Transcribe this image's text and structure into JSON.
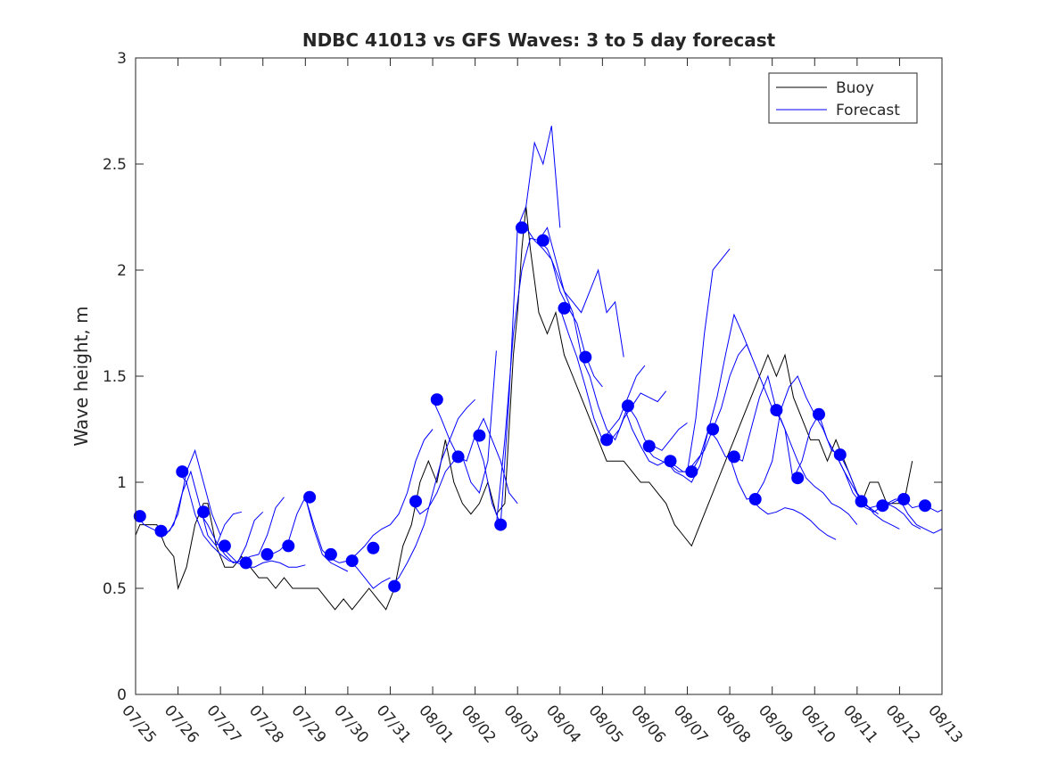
{
  "chart_data": {
    "type": "line",
    "title": "NDBC 41013 vs GFS Waves: 3 to 5 day forecast",
    "xlabel": "",
    "ylabel": "Wave height, m",
    "xlim": [
      0,
      19
    ],
    "ylim": [
      0,
      3
    ],
    "x_tick_values": [
      0,
      1,
      2,
      3,
      4,
      5,
      6,
      7,
      8,
      9,
      10,
      11,
      12,
      13,
      14,
      15,
      16,
      17,
      18,
      19
    ],
    "x_tick_labels": [
      "07/25",
      "07/26",
      "07/27",
      "07/28",
      "07/29",
      "07/30",
      "07/31",
      "08/01",
      "08/02",
      "08/03",
      "08/04",
      "08/05",
      "08/06",
      "08/07",
      "08/08",
      "08/09",
      "08/10",
      "08/11",
      "08/12",
      "08/13"
    ],
    "y_tick_values": [
      0,
      0.5,
      1,
      1.5,
      2,
      2.5,
      3
    ],
    "y_tick_labels": [
      "0",
      "0.5",
      "1",
      "1.5",
      "2",
      "2.5",
      "3"
    ],
    "grid": false,
    "legend_position": "top-right",
    "colors": {
      "buoy": "#000000",
      "forecast": "#0000ff",
      "axis": "#262626"
    },
    "series": [
      {
        "name": "Buoy",
        "kind": "line",
        "x": [
          0,
          0.1,
          0.2,
          0.3,
          0.5,
          0.7,
          0.9,
          1.0,
          1.2,
          1.4,
          1.6,
          1.7,
          1.9,
          2.1,
          2.3,
          2.5,
          2.7,
          2.9,
          3.1,
          3.3,
          3.5,
          3.7,
          3.9,
          4.1,
          4.3,
          4.5,
          4.7,
          4.9,
          5.1,
          5.3,
          5.5,
          5.7,
          5.9,
          6.1,
          6.3,
          6.5,
          6.7,
          6.9,
          7.1,
          7.3,
          7.5,
          7.7,
          7.9,
          8.1,
          8.3,
          8.5,
          8.7,
          8.9,
          9.0,
          9.1,
          9.2,
          9.3,
          9.5,
          9.7,
          9.9,
          10.1,
          10.3,
          10.5,
          10.7,
          10.9,
          11.1,
          11.3,
          11.5,
          11.7,
          11.9,
          12.1,
          12.3,
          12.5,
          12.7,
          12.9,
          13.1,
          13.3,
          13.5,
          13.7,
          13.9,
          14.1,
          14.3,
          14.5,
          14.7,
          14.9,
          15.1,
          15.3,
          15.5,
          15.7,
          15.9,
          16.1,
          16.3,
          16.5,
          16.7,
          16.9,
          17.1,
          17.3,
          17.5,
          17.7,
          17.9,
          18.1,
          18.3
        ],
        "y": [
          0.75,
          0.8,
          0.8,
          0.8,
          0.8,
          0.7,
          0.65,
          0.5,
          0.6,
          0.8,
          0.9,
          0.9,
          0.7,
          0.6,
          0.6,
          0.65,
          0.6,
          0.55,
          0.55,
          0.5,
          0.55,
          0.5,
          0.5,
          0.5,
          0.5,
          0.45,
          0.4,
          0.45,
          0.4,
          0.45,
          0.5,
          0.45,
          0.4,
          0.5,
          0.7,
          0.8,
          1.0,
          1.1,
          1.0,
          1.2,
          1.0,
          0.9,
          0.85,
          0.9,
          1.0,
          0.85,
          0.9,
          1.6,
          1.8,
          2.1,
          2.3,
          2.1,
          1.8,
          1.7,
          1.8,
          1.6,
          1.5,
          1.4,
          1.3,
          1.2,
          1.1,
          1.1,
          1.1,
          1.05,
          1.0,
          1.0,
          0.95,
          0.9,
          0.8,
          0.75,
          0.7,
          0.8,
          0.9,
          1.0,
          1.1,
          1.2,
          1.3,
          1.4,
          1.5,
          1.6,
          1.5,
          1.6,
          1.4,
          1.3,
          1.2,
          1.2,
          1.1,
          1.2,
          1.1,
          1.0,
          0.9,
          1.0,
          1.0,
          0.9,
          0.9,
          0.9,
          1.1
        ]
      },
      {
        "name": "Forecast",
        "kind": "line",
        "x": [
          0,
          0.2,
          0.4,
          0.6,
          0.8,
          1.0,
          1.2,
          1.4,
          1.6,
          1.8,
          2.0
        ],
        "y": [
          0.85,
          0.8,
          0.78,
          0.76,
          0.77,
          0.85,
          1.05,
          1.15,
          1.0,
          0.85,
          0.75
        ]
      },
      {
        "kind": "line",
        "x": [
          0.5,
          0.7,
          0.9,
          1.1,
          1.3,
          1.5,
          1.7,
          1.9,
          2.1,
          2.3,
          2.5
        ],
        "y": [
          0.77,
          0.75,
          0.8,
          0.95,
          1.05,
          0.9,
          0.75,
          0.7,
          0.8,
          0.85,
          0.86
        ]
      },
      {
        "kind": "line",
        "x": [
          1.0,
          1.2,
          1.4,
          1.6,
          1.8,
          2.0,
          2.2,
          2.4,
          2.6,
          2.8,
          3.0
        ],
        "y": [
          1.05,
          1.0,
          0.85,
          0.75,
          0.7,
          0.66,
          0.63,
          0.62,
          0.7,
          0.82,
          0.86
        ]
      },
      {
        "kind": "line",
        "x": [
          1.5,
          1.7,
          1.9,
          2.1,
          2.3,
          2.5,
          2.7,
          2.9,
          3.1,
          3.3,
          3.5
        ],
        "y": [
          0.86,
          0.8,
          0.72,
          0.66,
          0.62,
          0.63,
          0.65,
          0.66,
          0.75,
          0.88,
          0.93
        ]
      },
      {
        "kind": "line",
        "x": [
          2.0,
          2.2,
          2.4,
          2.6,
          2.8,
          3.0,
          3.2,
          3.4,
          3.6,
          3.8,
          4.0
        ],
        "y": [
          0.7,
          0.66,
          0.62,
          0.6,
          0.6,
          0.62,
          0.63,
          0.62,
          0.6,
          0.6,
          0.61
        ]
      },
      {
        "kind": "line",
        "x": [
          3.0,
          3.2,
          3.4,
          3.6,
          3.8,
          4.0,
          4.2,
          4.4,
          4.6,
          4.8,
          5.0
        ],
        "y": [
          0.66,
          0.66,
          0.68,
          0.72,
          0.85,
          0.93,
          0.78,
          0.66,
          0.62,
          0.6,
          0.58
        ]
      },
      {
        "kind": "line",
        "x": [
          4.0,
          4.2,
          4.4,
          4.6,
          4.8,
          5.0,
          5.2,
          5.4,
          5.6,
          5.8,
          6.0
        ],
        "y": [
          0.93,
          0.8,
          0.68,
          0.64,
          0.62,
          0.63,
          0.6,
          0.55,
          0.5,
          0.53,
          0.55
        ]
      },
      {
        "kind": "line",
        "x": [
          5.0,
          5.2,
          5.4,
          5.6,
          5.8,
          6.0,
          6.2,
          6.4,
          6.6,
          6.8,
          7.0
        ],
        "y": [
          0.63,
          0.66,
          0.7,
          0.75,
          0.78,
          0.8,
          0.85,
          0.95,
          1.1,
          1.2,
          1.25
        ]
      },
      {
        "kind": "line",
        "x": [
          6.0,
          6.2,
          6.4,
          6.6,
          6.8,
          7.0,
          7.2,
          7.4,
          7.6,
          7.8,
          8.0
        ],
        "y": [
          0.51,
          0.55,
          0.62,
          0.7,
          0.8,
          0.95,
          1.1,
          1.2,
          1.3,
          1.35,
          1.39
        ]
      },
      {
        "kind": "line",
        "x": [
          6.5,
          6.7,
          6.9,
          7.1,
          7.3,
          7.5,
          7.7,
          7.9,
          8.1,
          8.3,
          8.5
        ],
        "y": [
          0.91,
          0.85,
          0.88,
          0.95,
          1.05,
          1.1,
          1.12,
          1.0,
          0.95,
          1.1,
          1.62
        ]
      },
      {
        "kind": "line",
        "x": [
          7.0,
          7.2,
          7.4,
          7.6,
          7.8,
          8.0,
          8.2,
          8.4,
          8.6,
          8.8,
          9.0
        ],
        "y": [
          1.39,
          1.3,
          1.2,
          1.12,
          1.1,
          1.22,
          1.3,
          1.2,
          1.1,
          0.95,
          0.9
        ]
      },
      {
        "kind": "line",
        "x": [
          8.0,
          8.2,
          8.4,
          8.6,
          8.8,
          9.0,
          9.2,
          9.4,
          9.6,
          9.8,
          10.0
        ],
        "y": [
          1.22,
          1.1,
          0.9,
          0.8,
          1.4,
          2.2,
          2.3,
          2.6,
          2.5,
          2.68,
          2.2
        ]
      },
      {
        "kind": "line",
        "x": [
          8.5,
          8.7,
          8.9,
          9.1,
          9.3,
          9.5,
          9.7,
          9.9,
          10.1,
          10.3,
          10.5
        ],
        "y": [
          0.8,
          1.2,
          1.7,
          2.0,
          2.15,
          2.14,
          2.1,
          2.0,
          1.9,
          1.8,
          1.6
        ]
      },
      {
        "kind": "line",
        "x": [
          9.0,
          9.2,
          9.4,
          9.6,
          9.8,
          10.0,
          10.2,
          10.4,
          10.6,
          10.8,
          11.0
        ],
        "y": [
          2.2,
          2.2,
          2.14,
          2.1,
          2.05,
          1.9,
          1.82,
          1.75,
          1.6,
          1.5,
          1.45
        ]
      },
      {
        "kind": "line",
        "x": [
          9.5,
          9.7,
          9.9,
          10.1,
          10.3,
          10.5,
          10.7,
          10.9,
          11.1,
          11.3,
          11.5
        ],
        "y": [
          2.14,
          2.2,
          2.05,
          1.9,
          1.85,
          1.8,
          1.9,
          2.0,
          1.8,
          1.85,
          1.59
        ]
      },
      {
        "kind": "line",
        "x": [
          10.0,
          10.2,
          10.4,
          10.6,
          10.8,
          11.0,
          11.2,
          11.4,
          11.6,
          11.8,
          12.0
        ],
        "y": [
          1.82,
          1.7,
          1.59,
          1.45,
          1.3,
          1.2,
          1.25,
          1.3,
          1.4,
          1.5,
          1.55
        ]
      },
      {
        "kind": "line",
        "x": [
          10.5,
          10.7,
          10.9,
          11.1,
          11.3,
          11.5,
          11.7,
          11.9,
          12.1,
          12.3,
          12.5
        ],
        "y": [
          1.59,
          1.5,
          1.36,
          1.25,
          1.2,
          1.3,
          1.36,
          1.42,
          1.4,
          1.38,
          1.43
        ]
      },
      {
        "kind": "line",
        "x": [
          11.0,
          11.2,
          11.4,
          11.6,
          11.8,
          12.0,
          12.2,
          12.4,
          12.6,
          12.8,
          13.0
        ],
        "y": [
          1.2,
          1.2,
          1.25,
          1.36,
          1.3,
          1.2,
          1.17,
          1.15,
          1.2,
          1.25,
          1.28
        ]
      },
      {
        "kind": "line",
        "x": [
          11.5,
          11.7,
          11.9,
          12.1,
          12.3,
          12.5,
          12.7,
          12.9,
          13.1,
          13.3,
          13.5
        ],
        "y": [
          1.36,
          1.25,
          1.17,
          1.1,
          1.08,
          1.1,
          1.05,
          1.03,
          1.0,
          1.08,
          1.25
        ]
      },
      {
        "kind": "line",
        "x": [
          12.0,
          12.2,
          12.4,
          12.6,
          12.8,
          13.0,
          13.2,
          13.4,
          13.6,
          13.8,
          14.0
        ],
        "y": [
          1.17,
          1.12,
          1.1,
          1.08,
          1.05,
          1.05,
          1.3,
          1.7,
          2.0,
          2.05,
          2.1
        ]
      },
      {
        "kind": "line",
        "x": [
          12.5,
          12.7,
          12.9,
          13.1,
          13.3,
          13.5,
          13.7,
          13.9,
          14.1,
          14.3,
          14.5
        ],
        "y": [
          1.1,
          1.08,
          1.05,
          1.05,
          1.12,
          1.25,
          1.4,
          1.6,
          1.79,
          1.7,
          1.6
        ]
      },
      {
        "kind": "line",
        "x": [
          13.0,
          13.2,
          13.4,
          13.6,
          13.8,
          14.0,
          14.2,
          14.4,
          14.6,
          14.8,
          15.0
        ],
        "y": [
          1.05,
          1.1,
          1.15,
          1.25,
          1.35,
          1.5,
          1.6,
          1.65,
          1.55,
          1.45,
          1.35
        ]
      },
      {
        "kind": "line",
        "x": [
          13.5,
          13.7,
          13.9,
          14.1,
          14.3,
          14.5,
          14.7,
          14.9,
          15.1,
          15.3,
          15.5
        ],
        "y": [
          1.25,
          1.2,
          1.12,
          1.12,
          1.1,
          1.25,
          1.4,
          1.5,
          1.34,
          1.25,
          1.0
        ]
      },
      {
        "kind": "line",
        "x": [
          14.0,
          14.2,
          14.4,
          14.6,
          14.8,
          15.0,
          15.2,
          15.4,
          15.6,
          15.8,
          16.0
        ],
        "y": [
          1.12,
          1.0,
          0.92,
          0.93,
          1.0,
          1.1,
          1.34,
          1.45,
          1.5,
          1.4,
          1.32
        ]
      },
      {
        "kind": "line",
        "x": [
          14.5,
          14.7,
          14.9,
          15.1,
          15.3,
          15.5,
          15.7,
          15.9,
          16.1,
          16.3,
          16.5
        ],
        "y": [
          0.92,
          0.88,
          0.85,
          0.86,
          0.88,
          0.87,
          0.85,
          0.82,
          0.78,
          0.75,
          0.73
        ]
      },
      {
        "kind": "line",
        "x": [
          15.0,
          15.2,
          15.4,
          15.6,
          15.8,
          16.0,
          16.2,
          16.4,
          16.6,
          16.8,
          17.0
        ],
        "y": [
          1.34,
          1.3,
          1.2,
          1.1,
          1.02,
          0.98,
          0.95,
          0.9,
          0.88,
          0.85,
          0.8
        ]
      },
      {
        "kind": "line",
        "x": [
          15.5,
          15.7,
          15.9,
          16.1,
          16.3,
          16.5,
          16.7,
          16.9,
          17.1,
          17.3,
          17.5
        ],
        "y": [
          1.02,
          1.1,
          1.25,
          1.32,
          1.2,
          1.13,
          1.05,
          0.95,
          0.9,
          0.88,
          0.85
        ]
      },
      {
        "kind": "line",
        "x": [
          16.0,
          16.2,
          16.4,
          16.6,
          16.8,
          17.0,
          17.2,
          17.4,
          17.6,
          17.8,
          18.0
        ],
        "y": [
          1.32,
          1.25,
          1.15,
          1.13,
          1.05,
          0.95,
          0.9,
          0.85,
          0.82,
          0.8,
          0.78
        ]
      },
      {
        "kind": "line",
        "x": [
          16.5,
          16.7,
          16.9,
          17.1,
          17.3,
          17.5,
          17.7,
          17.9,
          18.1,
          18.3,
          18.5
        ],
        "y": [
          1.13,
          1.05,
          0.98,
          0.91,
          0.88,
          0.89,
          0.9,
          0.88,
          0.85,
          0.8,
          0.78
        ]
      },
      {
        "kind": "line",
        "x": [
          17.0,
          17.2,
          17.4,
          17.6,
          17.8,
          18.0,
          18.2,
          18.4,
          18.6,
          18.8,
          19.0
        ],
        "y": [
          0.91,
          0.88,
          0.86,
          0.89,
          0.9,
          0.92,
          0.85,
          0.8,
          0.78,
          0.76,
          0.78
        ]
      },
      {
        "kind": "line",
        "x": [
          17.5,
          17.7,
          17.9,
          18.1,
          18.3,
          18.5,
          18.7,
          18.9,
          19.0
        ],
        "y": [
          0.89,
          0.9,
          0.92,
          0.92,
          0.88,
          0.89,
          0.88,
          0.86,
          0.87
        ]
      },
      {
        "kind": "markers",
        "x": [
          0.1,
          0.6,
          1.1,
          1.6,
          2.1,
          2.6,
          3.1,
          3.6,
          4.1,
          4.6,
          5.1,
          5.6,
          6.1,
          6.6,
          7.1,
          7.6,
          8.1,
          8.6,
          9.1,
          9.6,
          10.1,
          10.6,
          11.1,
          11.6,
          12.1,
          12.6,
          13.1,
          13.6,
          14.1,
          14.6,
          15.1,
          15.6,
          16.1,
          16.6,
          17.1,
          17.6,
          18.1,
          18.6
        ],
        "y": [
          0.84,
          0.77,
          1.05,
          0.86,
          0.7,
          0.62,
          0.66,
          0.7,
          0.93,
          0.66,
          0.63,
          0.69,
          0.51,
          0.91,
          1.39,
          1.12,
          1.22,
          0.8,
          2.2,
          2.14,
          1.82,
          1.59,
          1.2,
          1.36,
          1.17,
          1.1,
          1.05,
          1.25,
          1.12,
          0.92,
          1.34,
          1.02,
          1.32,
          1.13,
          0.91,
          0.89,
          0.92,
          0.89
        ]
      }
    ]
  }
}
